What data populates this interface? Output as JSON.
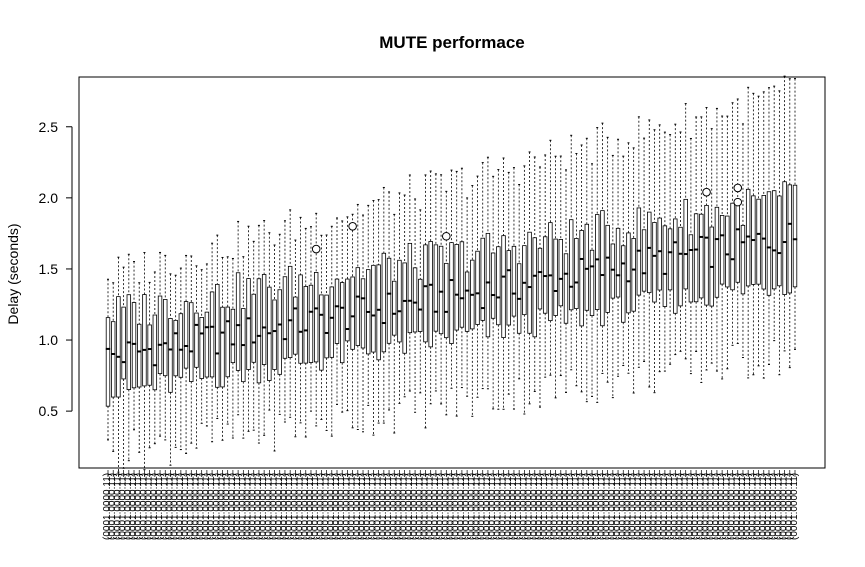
{
  "chart_data": {
    "type": "boxplot",
    "title": "MUTE performace",
    "xlabel": "",
    "ylabel": "Delay (seconds)",
    "ylim": [
      0.1,
      2.85
    ],
    "yticks": [
      0.5,
      1.0,
      1.5,
      2.0,
      2.5
    ],
    "ytick_labels": [
      "0.5",
      "1.0",
      "1.5",
      "2.0",
      "2.5"
    ],
    "series_count": 133,
    "category_label_pattern": "(0001.0000.11)",
    "category_labels_rendered_as_overlapping_vertical_text": true,
    "box_fill": "#ffffff",
    "line_color": "#000000",
    "median_trend": {
      "start": 0.88,
      "end": 1.73,
      "description": "Medians rise gradually from about 0.9 s on the left to about 1.7 s on the right"
    },
    "box_trend": {
      "q1_start": 0.62,
      "q1_end": 1.42,
      "q3_start": 1.18,
      "q3_end": 2.0
    },
    "whisker_trend": {
      "low_start": 0.2,
      "low_end": 0.9,
      "high_start": 1.45,
      "high_end": 2.75
    },
    "outliers": [
      {
        "series": 40,
        "value": 1.64
      },
      {
        "series": 47,
        "value": 1.8
      },
      {
        "series": 65,
        "value": 1.73
      },
      {
        "series": 115,
        "value": 2.04
      },
      {
        "series": 121,
        "value": 2.07
      },
      {
        "series": 121,
        "value": 1.97
      }
    ]
  }
}
